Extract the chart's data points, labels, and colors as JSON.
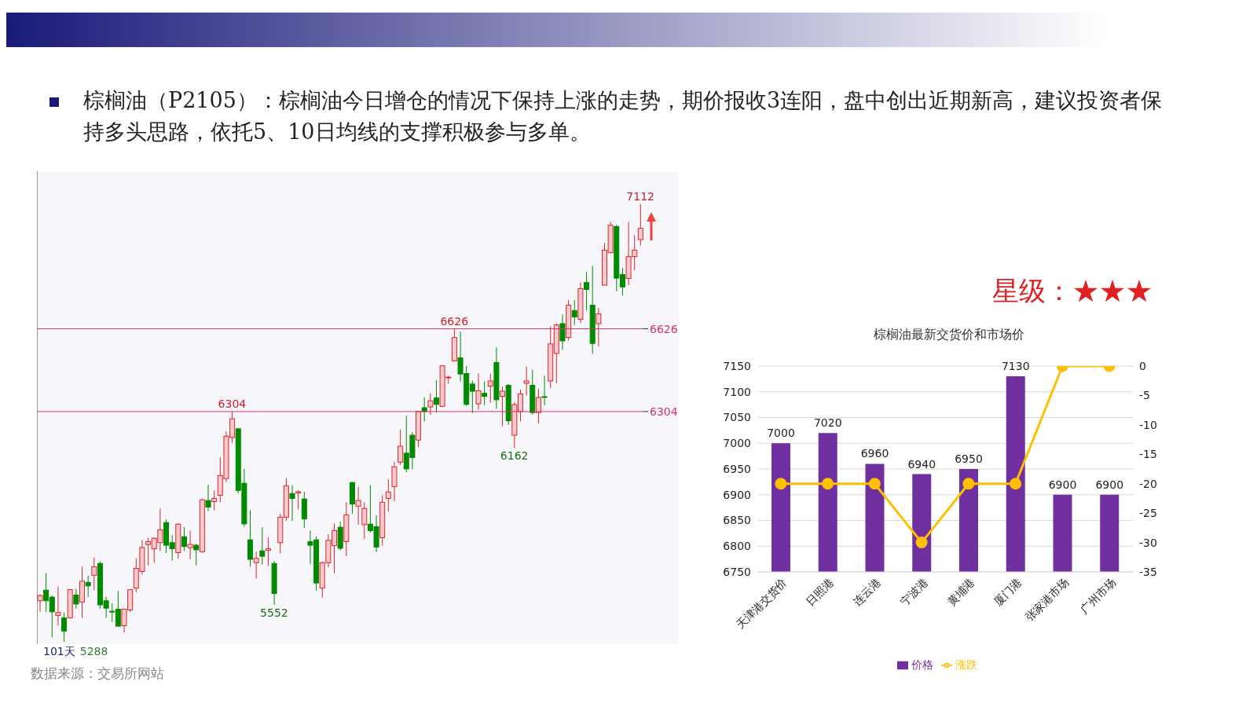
{
  "chart_data": [
    {
      "type": "candlestick",
      "title": "棕榈油（P2105）：棕榈油今日增仓的情况下保持上涨的走势，期价报收3连阳，盘中创出近期新高，建议投资者保持多头思路，依托5、10日均线的支撑积极参与多单。",
      "categories": [
        null,
        null,
        null,
        null,
        null,
        null,
        null,
        null,
        null,
        null,
        null,
        null,
        null,
        null,
        null,
        null,
        null,
        null,
        null,
        null,
        null,
        null,
        null,
        null,
        null,
        null,
        null,
        null,
        null,
        null,
        null,
        null,
        null,
        null,
        null,
        null,
        null,
        null,
        null,
        null,
        null,
        null,
        null,
        null,
        null,
        null,
        null,
        null,
        null,
        null,
        null,
        null,
        null,
        null,
        null,
        null,
        null,
        null,
        null,
        null,
        null,
        null,
        null,
        null,
        null,
        null,
        null,
        null,
        null,
        null,
        null,
        null,
        null,
        null,
        null,
        null,
        null,
        null,
        null,
        null,
        null,
        null,
        null,
        null,
        null,
        null,
        null,
        null,
        null,
        null,
        null,
        null,
        null,
        null,
        null,
        null,
        null,
        null,
        null,
        null,
        null
      ],
      "ohlc": [
        [
          5568,
          5593,
          5525,
          5588
        ],
        [
          5609,
          5675,
          5525,
          5568
        ],
        [
          5582,
          5588,
          5425,
          5525
        ],
        [
          5511,
          5624,
          5471,
          5522
        ],
        [
          5501,
          5522,
          5409,
          5450
        ],
        [
          5501,
          5611,
          5501,
          5611
        ],
        [
          5590,
          5614,
          5537,
          5555
        ],
        [
          5563,
          5700,
          5501,
          5644
        ],
        [
          5639,
          5665,
          5583,
          5626
        ],
        [
          5667,
          5736,
          5609,
          5700
        ],
        [
          5713,
          5721,
          5537,
          5552
        ],
        [
          5568,
          5583,
          5501,
          5539
        ],
        [
          5527,
          5557,
          5486,
          5525
        ],
        [
          5535,
          5606,
          5469,
          5469
        ],
        [
          5471,
          5535,
          5445,
          5535
        ],
        [
          5532,
          5611,
          5525,
          5611
        ],
        [
          5617,
          5733,
          5601,
          5694
        ],
        [
          5682,
          5805,
          5670,
          5775
        ],
        [
          5787,
          5813,
          5706,
          5798
        ],
        [
          5770,
          5815,
          5716,
          5811
        ],
        [
          5794,
          5927,
          5762,
          5844
        ],
        [
          5872,
          5884,
          5754,
          5784
        ],
        [
          5794,
          5823,
          5725,
          5770
        ],
        [
          5755,
          5869,
          5731,
          5866
        ],
        [
          5817,
          5854,
          5762,
          5779
        ],
        [
          5774,
          5841,
          5729,
          5787
        ],
        [
          5784,
          5790,
          5706,
          5766
        ],
        [
          5759,
          5966,
          5754,
          5961
        ],
        [
          5958,
          6019,
          5917,
          5932
        ],
        [
          5954,
          5997,
          5920,
          5966
        ],
        [
          5978,
          6127,
          5951,
          6055
        ],
        [
          6043,
          6227,
          6030,
          6208
        ],
        [
          6203,
          6304,
          6181,
          6276
        ],
        [
          6237,
          6237,
          5985,
          5997
        ],
        [
          6025,
          6081,
          5856,
          5867
        ],
        [
          5805,
          5920,
          5700,
          5729
        ],
        [
          5716,
          5759,
          5654,
          5733
        ],
        [
          5762,
          5854,
          5709,
          5741
        ],
        [
          5764,
          5815,
          5703,
          5770
        ],
        [
          5713,
          5723,
          5552,
          5596
        ],
        [
          5794,
          5907,
          5752,
          5893
        ],
        [
          5893,
          6046,
          5879,
          6015
        ],
        [
          5985,
          6017,
          5879,
          5966
        ],
        [
          5987,
          5997,
          5923,
          5992
        ],
        [
          5964,
          5992,
          5852,
          5886
        ],
        [
          5798,
          5841,
          5711,
          5784
        ],
        [
          5805,
          5818,
          5606,
          5637
        ],
        [
          5617,
          5721,
          5580,
          5716
        ],
        [
          5716,
          5828,
          5698,
          5803
        ],
        [
          5782,
          5869,
          5675,
          5841
        ],
        [
          5854,
          5876,
          5764,
          5772
        ],
        [
          5798,
          5951,
          5741,
          5902
        ],
        [
          6028,
          6028,
          5907,
          5944
        ],
        [
          5936,
          6012,
          5864,
          5958
        ],
        [
          5864,
          5951,
          5808,
          5927
        ],
        [
          5866,
          6017,
          5833,
          5841
        ],
        [
          5856,
          5900,
          5757,
          5777
        ],
        [
          5813,
          5978,
          5782,
          5951
        ],
        [
          5966,
          6040,
          5915,
          5991
        ],
        [
          6012,
          6109,
          5954,
          6089
        ],
        [
          6107,
          6234,
          6097,
          6169
        ],
        [
          6142,
          6288,
          6068,
          6081
        ],
        [
          6212,
          6224,
          6079,
          6125
        ],
        [
          6193,
          6306,
          6166,
          6304
        ],
        [
          6319,
          6359,
          6265,
          6304
        ],
        [
          6322,
          6375,
          6291,
          6346
        ],
        [
          6357,
          6426,
          6301,
          6332
        ],
        [
          6324,
          6485,
          6324,
          6482
        ],
        [
          6436,
          6444,
          6411,
          6438
        ],
        [
          6501,
          6626,
          6498,
          6592
        ],
        [
          6513,
          6615,
          6421,
          6450
        ],
        [
          6452,
          6482,
          6326,
          6332
        ],
        [
          6411,
          6424,
          6298,
          6383
        ],
        [
          6334,
          6452,
          6312,
          6385
        ],
        [
          6375,
          6421,
          6329,
          6363
        ],
        [
          6403,
          6452,
          6339,
          6423
        ],
        [
          6495,
          6554,
          6314,
          6350
        ],
        [
          6363,
          6401,
          6247,
          6383
        ],
        [
          6406,
          6411,
          6252,
          6268
        ],
        [
          6212,
          6341,
          6162,
          6331
        ],
        [
          6304,
          6390,
          6265,
          6373
        ],
        [
          6414,
          6479,
          6367,
          6423
        ],
        [
          6406,
          6467,
          6293,
          6300
        ],
        [
          6300,
          6393,
          6258,
          6359
        ],
        [
          6362,
          6444,
          6329,
          6359
        ],
        [
          6423,
          6636,
          6396,
          6567
        ],
        [
          6530,
          6646,
          6414,
          6641
        ],
        [
          6646,
          6682,
          6544,
          6579
        ],
        [
          6592,
          6738,
          6580,
          6718
        ],
        [
          6697,
          6738,
          6641,
          6672
        ],
        [
          6663,
          6806,
          6649,
          6782
        ],
        [
          6806,
          6847,
          6697,
          6779
        ],
        [
          6718,
          6871,
          6528,
          6569
        ],
        [
          6646,
          6707,
          6557,
          6684
        ],
        [
          6796,
          6960,
          6796,
          6932
        ],
        [
          6922,
          7042,
          6922,
          7029
        ],
        [
          7024,
          7031,
          6772,
          6823
        ],
        [
          6837,
          6863,
          6755,
          6789
        ],
        [
          6822,
          7042,
          6796,
          6907
        ],
        [
          6907,
          6990,
          6853,
          6932
        ],
        [
          6973,
          7112,
          6950,
          7017
        ]
      ],
      "ylim": [
        5399,
        7239
      ],
      "yticks": [
        {
          "value": 6304,
          "label": "6304"
        },
        {
          "value": 6626,
          "label": "6626"
        }
      ],
      "ref_lines": [
        {
          "axis": "y",
          "value": 6626,
          "color": "#d6336c"
        },
        {
          "axis": "y",
          "value": 6304,
          "color": "#d6336c"
        }
      ],
      "annotations": [
        {
          "text": "7112",
          "y": 7112
        },
        {
          "text": "6626",
          "y": 6626
        },
        {
          "text": "6304",
          "y": 6304
        },
        {
          "text": "6162",
          "y": 6162
        },
        {
          "text": "5552",
          "y": 5552
        },
        "101天",
        "5288",
        "数据来源：交易所网站"
      ],
      "tick_labels": "y",
      "grid": false
    },
    {
      "type": "bar",
      "title": "棕榈油最新交货价和市场价",
      "categories": [
        "天津港交货价",
        "日照港",
        "连云港",
        "宁波港",
        "黄埔港",
        "厦门港",
        "张家港市场",
        "广州市场"
      ],
      "series": [
        {
          "name": "价格",
          "type": "bar",
          "color": "#7030a0",
          "values": [
            7000,
            7020,
            6960,
            6940,
            6950,
            7130,
            6900,
            6900
          ],
          "value_labels": [
            "7000",
            "7020",
            "6960",
            "6940",
            "6950",
            "7130",
            "6900",
            "6900"
          ]
        },
        {
          "name": "涨跌",
          "type": "line",
          "axis": "y2",
          "color": "#ffc000",
          "values": [
            -20,
            -20,
            -20,
            -30,
            -20,
            -20,
            0,
            0
          ]
        }
      ],
      "ylim": [
        6750,
        7150
      ],
      "yticks": [
        6750,
        6800,
        6850,
        6900,
        6950,
        7000,
        7050,
        7100,
        7150
      ],
      "y2lim": [
        -35,
        0
      ],
      "y2ticks": [
        -35,
        -30,
        -25,
        -20,
        -15,
        -10,
        -5,
        0
      ],
      "grid": "y",
      "legend": "bottom",
      "marker": "circle"
    },
    {
      "type": "other",
      "title": "星级：★★★"
    }
  ]
}
